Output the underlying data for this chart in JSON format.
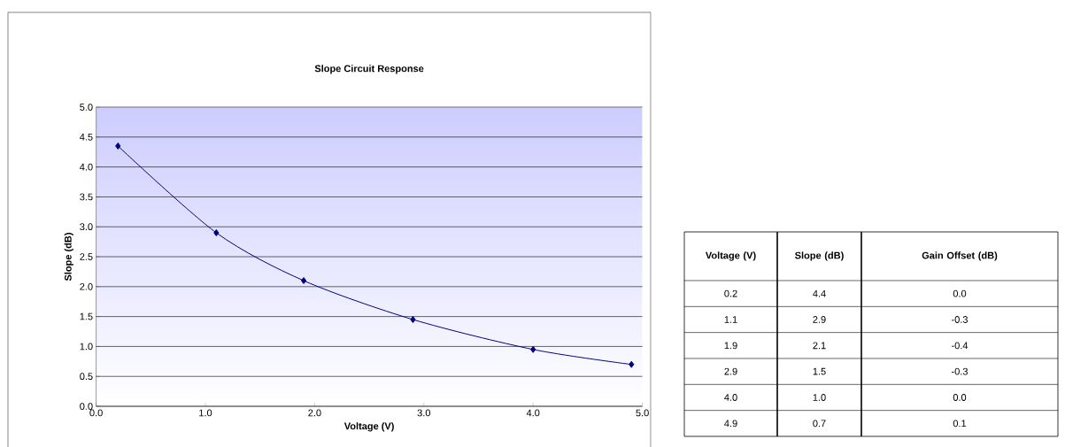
{
  "chart_data": [
    {
      "type": "line",
      "title": "Slope Circuit Response",
      "xlabel": "Voltage (V)",
      "ylabel": "Slope (dB)",
      "x": [
        0.2,
        1.1,
        1.9,
        2.9,
        4.0,
        4.9
      ],
      "series": [
        {
          "color": "#000080",
          "values": [
            4.35,
            2.9,
            2.1,
            1.45,
            0.95,
            0.7
          ]
        }
      ],
      "xlim": [
        0,
        5
      ],
      "ylim": [
        0,
        5
      ],
      "xticks": [
        {
          "value": 0,
          "label": "0.0"
        },
        {
          "value": 1,
          "label": "1.0"
        },
        {
          "value": 2,
          "label": "2.0"
        },
        {
          "value": 3,
          "label": "3.0"
        },
        {
          "value": 4,
          "label": "4.0"
        },
        {
          "value": 5,
          "label": "5.0"
        }
      ],
      "yticks": [
        {
          "value": 0,
          "label": "0.0"
        },
        {
          "value": 0.5,
          "label": "0.5"
        },
        {
          "value": 1,
          "label": "1.0"
        },
        {
          "value": 1.5,
          "label": "1.5"
        },
        {
          "value": 2,
          "label": "2.0"
        },
        {
          "value": 2.5,
          "label": "2.5"
        },
        {
          "value": 3,
          "label": "3.0"
        },
        {
          "value": 3.5,
          "label": "3.5"
        },
        {
          "value": 4,
          "label": "4.0"
        },
        {
          "value": 4.5,
          "label": "4.5"
        },
        {
          "value": 5,
          "label": "5.0"
        }
      ],
      "grid": "y",
      "marker": "diamond",
      "line_style": "solid"
    },
    {
      "type": "other",
      "xlabel": "Voltage (V)",
      "categories": [
        "0.2",
        "1.1",
        "1.9",
        "2.9",
        "4.0",
        "4.9"
      ],
      "series": [
        {
          "name": "Slope (dB)",
          "values": [
            4.4,
            2.9,
            2.1,
            1.5,
            1.0,
            0.7
          ],
          "value_labels": [
            "4.4",
            "2.9",
            "2.1",
            "1.5",
            "1.0",
            "0.7"
          ]
        },
        {
          "name": "Gain Offset (dB)",
          "values": [
            0.0,
            -0.3,
            -0.4,
            -0.3,
            0.0,
            0.1
          ],
          "value_labels": [
            "0.0",
            "-0.3",
            "-0.4",
            "-0.3",
            "0.0",
            "0.1"
          ]
        }
      ]
    }
  ]
}
